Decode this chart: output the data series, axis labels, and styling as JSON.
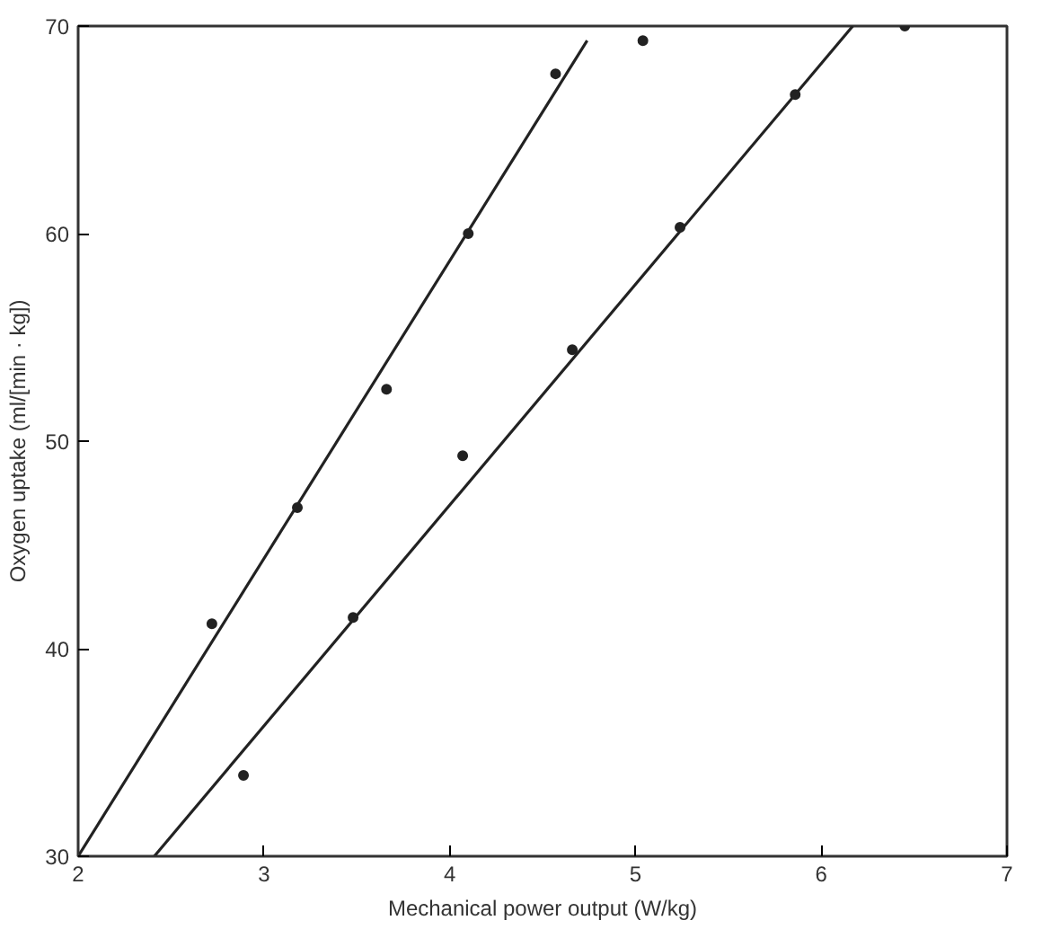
{
  "chart_data": {
    "type": "scatter",
    "xlabel": "Mechanical power output (W/kg)",
    "ylabel": "Oxygen uptake (ml/[min · kg])",
    "xlim": [
      2,
      7
    ],
    "ylim": [
      30,
      70
    ],
    "xticks": [
      2,
      3,
      4,
      5,
      6,
      7
    ],
    "yticks": [
      30,
      40,
      50,
      60,
      70
    ],
    "grid": false,
    "series": [
      {
        "marker": "circle",
        "color": "#222222",
        "x": [
          2.72,
          3.18,
          3.66,
          4.1,
          4.57,
          2.89,
          3.48,
          4.07,
          4.66,
          5.04,
          5.24,
          5.86,
          6.45
        ],
        "values": [
          41.2,
          46.8,
          52.5,
          60.0,
          67.7,
          33.9,
          41.5,
          49.3,
          54.4,
          69.3,
          60.3,
          66.7,
          70.0
        ]
      },
      {
        "type": "line",
        "color": "#222222",
        "line_style": "solid",
        "x": [
          2.0,
          4.74
        ],
        "values": [
          30.0,
          69.3
        ]
      },
      {
        "type": "line",
        "color": "#222222",
        "line_style": "solid",
        "x": [
          2.41,
          6.17
        ],
        "values": [
          30.0,
          70.0
        ]
      }
    ]
  }
}
